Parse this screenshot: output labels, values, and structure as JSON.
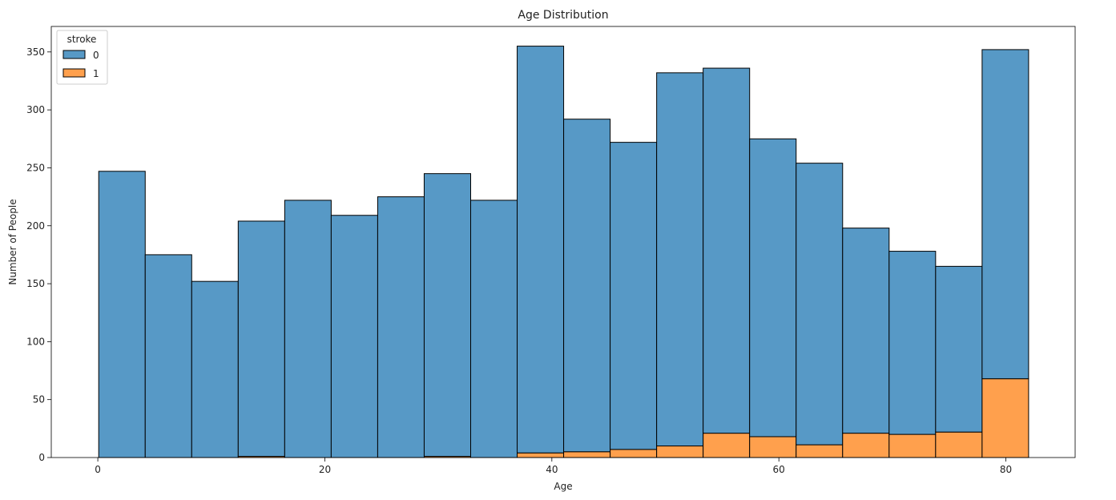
{
  "chart_data": {
    "type": "bar",
    "title": "Age Distribution",
    "xlabel": "Age",
    "ylabel": "Number of People",
    "xlim": [
      -4.1,
      86.1
    ],
    "ylim": [
      0,
      372
    ],
    "xticks": [
      0,
      20,
      40,
      60,
      80
    ],
    "yticks": [
      0,
      50,
      100,
      150,
      200,
      250,
      300,
      350
    ],
    "stacked": true,
    "bin_edges": [
      0.08,
      4.176,
      8.272,
      12.368,
      16.464,
      20.56,
      24.656,
      28.752,
      32.848,
      36.944,
      41.04,
      45.136,
      49.232,
      53.328,
      57.424,
      61.52,
      65.616,
      69.712,
      73.808,
      77.904,
      82.0
    ],
    "series": [
      {
        "name": "0",
        "color": "#5799c6",
        "values": [
          247,
          175,
          152,
          203,
          222,
          209,
          225,
          244,
          222,
          351,
          287,
          265,
          322,
          315,
          257,
          243,
          177,
          158,
          143,
          284
        ]
      },
      {
        "name": "1",
        "color": "#ffa04d",
        "values": [
          0,
          0,
          0,
          1,
          0,
          0,
          0,
          1,
          0,
          4,
          5,
          7,
          10,
          21,
          18,
          11,
          21,
          20,
          22,
          68
        ]
      }
    ],
    "legend": {
      "title": "stroke",
      "position": "top-left",
      "entries": [
        "0",
        "1"
      ]
    },
    "grid": false
  }
}
